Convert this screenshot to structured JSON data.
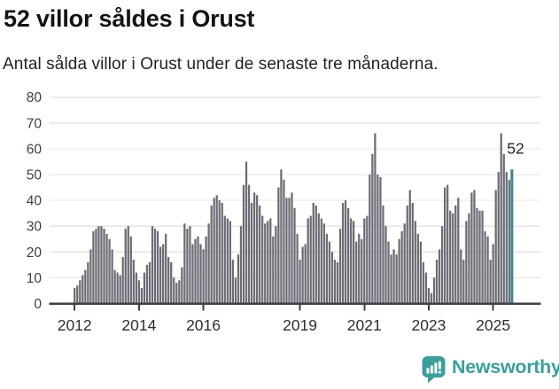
{
  "header": {
    "title": "52 villor såldes i Orust",
    "subtitle": "Antal sålda villor i Orust under de senaste tre månaderna."
  },
  "chart_data": {
    "type": "bar",
    "title": "52 villor såldes i Orust",
    "subtitle": "Antal sålda villor i Orust under de senaste tre månaderna.",
    "xlabel": "",
    "ylabel": "",
    "start_month": "2012-01",
    "end_month": "2025-08",
    "ylim": [
      0,
      80
    ],
    "grid": true,
    "legend_position": "none",
    "y_ticks": [
      0,
      10,
      20,
      30,
      40,
      50,
      60,
      70,
      80
    ],
    "x_ticks": [
      {
        "year": 2012,
        "label": "2012"
      },
      {
        "year": 2014,
        "label": "2014"
      },
      {
        "year": 2016,
        "label": "2016"
      },
      {
        "year": 2019,
        "label": "2019"
      },
      {
        "year": 2021,
        "label": "2021"
      },
      {
        "year": 2023,
        "label": "2023"
      },
      {
        "year": 2025,
        "label": "2025"
      }
    ],
    "bar_color": "#6c6c75",
    "highlight_color": "#35898e",
    "highlight_last_bar": true,
    "annotation": {
      "text": "52",
      "value": 52
    },
    "values": [
      6,
      7,
      9,
      11,
      13,
      16,
      21,
      28,
      29,
      30,
      30,
      29,
      27,
      25,
      21,
      13,
      12,
      11,
      18,
      29,
      30,
      26,
      17,
      12,
      9,
      6,
      12,
      15,
      16,
      30,
      29,
      28,
      22,
      23,
      27,
      18,
      16,
      10,
      8,
      9,
      14,
      31,
      29,
      30,
      23,
      25,
      26,
      23,
      21,
      26,
      31,
      38,
      41,
      42,
      40,
      39,
      34,
      33,
      32,
      17,
      10,
      19,
      30,
      46,
      55,
      46,
      39,
      43,
      42,
      38,
      34,
      31,
      32,
      33,
      26,
      30,
      45,
      52,
      48,
      41,
      41,
      43,
      37,
      27,
      17,
      22,
      23,
      33,
      34,
      39,
      38,
      35,
      33,
      31,
      27,
      24,
      20,
      17,
      16,
      29,
      39,
      40,
      37,
      33,
      32,
      24,
      27,
      25,
      33,
      34,
      50,
      58,
      66,
      50,
      49,
      38,
      30,
      24,
      19,
      21,
      19,
      25,
      28,
      31,
      38,
      44,
      39,
      32,
      27,
      24,
      16,
      12,
      6,
      4,
      10,
      17,
      21,
      30,
      45,
      46,
      36,
      35,
      38,
      41,
      21,
      17,
      32,
      35,
      43,
      44,
      37,
      36,
      36,
      28,
      26,
      17,
      23,
      44,
      51,
      66,
      58,
      51,
      48,
      52
    ]
  },
  "footer": {
    "brand": "Newsworthy",
    "logo_color": "#3b9e9b"
  }
}
